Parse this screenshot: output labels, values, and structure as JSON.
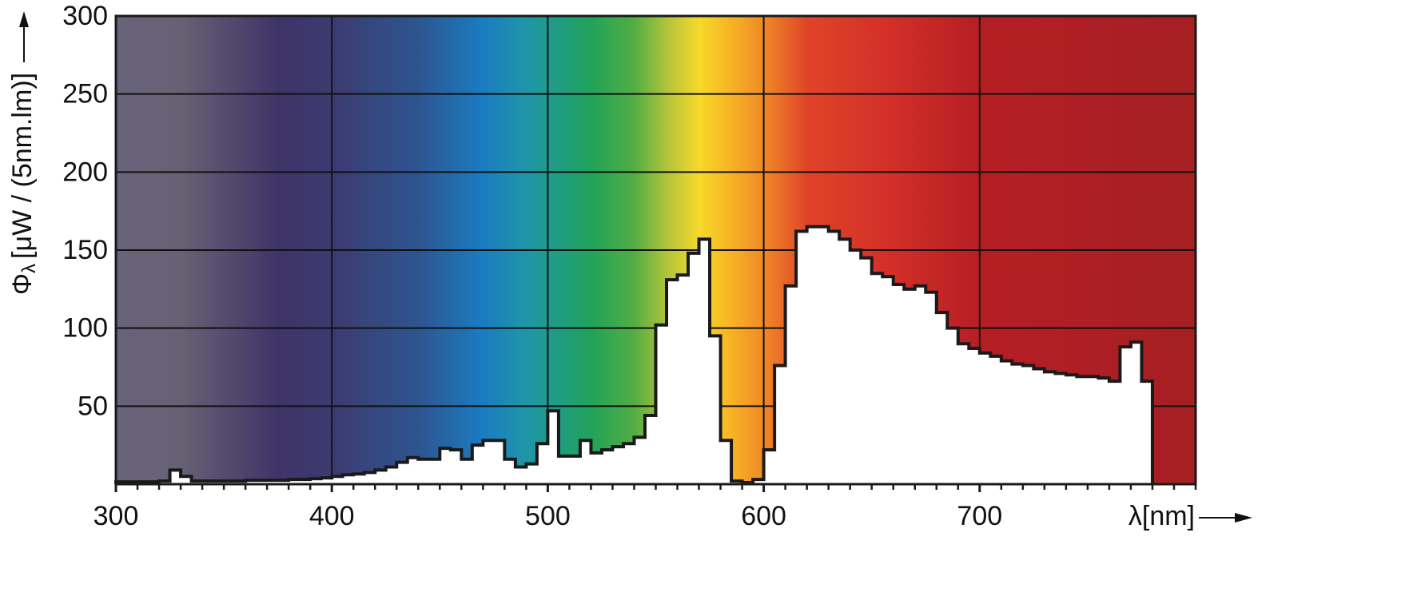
{
  "chart_data": {
    "type": "histogram",
    "ylabel_symbol": "Φ",
    "ylabel_subscript": "λ",
    "ylabel_unit": "[μW / (5nm.lm)]",
    "xlabel": "λ[nm]",
    "bins": [
      300,
      305,
      310,
      315,
      320,
      325,
      330,
      335,
      340,
      345,
      350,
      355,
      360,
      365,
      370,
      375,
      380,
      385,
      390,
      395,
      400,
      405,
      410,
      415,
      420,
      425,
      430,
      435,
      440,
      445,
      450,
      455,
      460,
      465,
      470,
      475,
      480,
      485,
      490,
      495,
      500,
      505,
      510,
      515,
      520,
      525,
      530,
      535,
      540,
      545,
      550,
      555,
      560,
      565,
      570,
      575,
      580,
      585,
      590,
      595,
      600,
      605,
      610,
      615,
      620,
      625,
      630,
      635,
      640,
      645,
      650,
      655,
      660,
      665,
      670,
      675,
      680,
      685,
      690,
      695,
      700,
      705,
      710,
      715,
      720,
      725,
      730,
      735,
      740,
      745,
      750,
      755,
      760,
      765,
      770,
      775,
      780
    ],
    "values": [
      1.5,
      1.5,
      1.5,
      1.5,
      2,
      9,
      5,
      2,
      2,
      2,
      2,
      2,
      2.5,
      2.5,
      2.5,
      2.5,
      3,
      3,
      3.5,
      4,
      5,
      6,
      6.5,
      7.5,
      9,
      11,
      14,
      17,
      16,
      16,
      23,
      22,
      16,
      25,
      28,
      28,
      16,
      11,
      13,
      26,
      47,
      18,
      18,
      28,
      20,
      22,
      24,
      26,
      30,
      44,
      102,
      131,
      134,
      148,
      157,
      95,
      28,
      2,
      1,
      3,
      22,
      76,
      127,
      162,
      165,
      165,
      162,
      157,
      150,
      145,
      135,
      133,
      128,
      125,
      127,
      123,
      110,
      100,
      90,
      87,
      84,
      82,
      79,
      77,
      76,
      74,
      72,
      71,
      70,
      69,
      69,
      68,
      66,
      88,
      91,
      66
    ],
    "color": "#ffffff",
    "outline_color": "#1a1a1a",
    "xlim": [
      300,
      800
    ],
    "ylim": [
      0,
      300
    ],
    "xticks": [
      300,
      400,
      500,
      600,
      700
    ],
    "xminorticks": [
      310,
      320,
      330,
      340,
      350,
      360,
      370,
      380,
      390,
      410,
      420,
      430,
      440,
      450,
      460,
      470,
      480,
      490,
      510,
      520,
      530,
      540,
      550,
      560,
      570,
      580,
      590,
      610,
      620,
      630,
      640,
      650,
      660,
      670,
      680,
      690,
      710,
      720,
      730,
      740,
      750,
      760,
      770,
      780,
      790,
      800
    ],
    "yticks": [
      50,
      100,
      150,
      200,
      250,
      300
    ],
    "grid": true,
    "spectrum": [
      {
        "nm": 300,
        "color": "#67637a"
      },
      {
        "nm": 330,
        "color": "#676174"
      },
      {
        "nm": 375,
        "color": "#3f3468"
      },
      {
        "nm": 400,
        "color": "#3c3a70"
      },
      {
        "nm": 440,
        "color": "#2e5590"
      },
      {
        "nm": 470,
        "color": "#1a7cc0"
      },
      {
        "nm": 490,
        "color": "#1f96a8"
      },
      {
        "nm": 520,
        "color": "#21a35a"
      },
      {
        "nm": 540,
        "color": "#52ad44"
      },
      {
        "nm": 556,
        "color": "#b6c53a"
      },
      {
        "nm": 570,
        "color": "#f6d92a"
      },
      {
        "nm": 585,
        "color": "#f7b324"
      },
      {
        "nm": 600,
        "color": "#ef8a28"
      },
      {
        "nm": 620,
        "color": "#e04428"
      },
      {
        "nm": 660,
        "color": "#d22e28"
      },
      {
        "nm": 700,
        "color": "#b51f24"
      },
      {
        "nm": 800,
        "color": "#a51f23"
      }
    ]
  }
}
